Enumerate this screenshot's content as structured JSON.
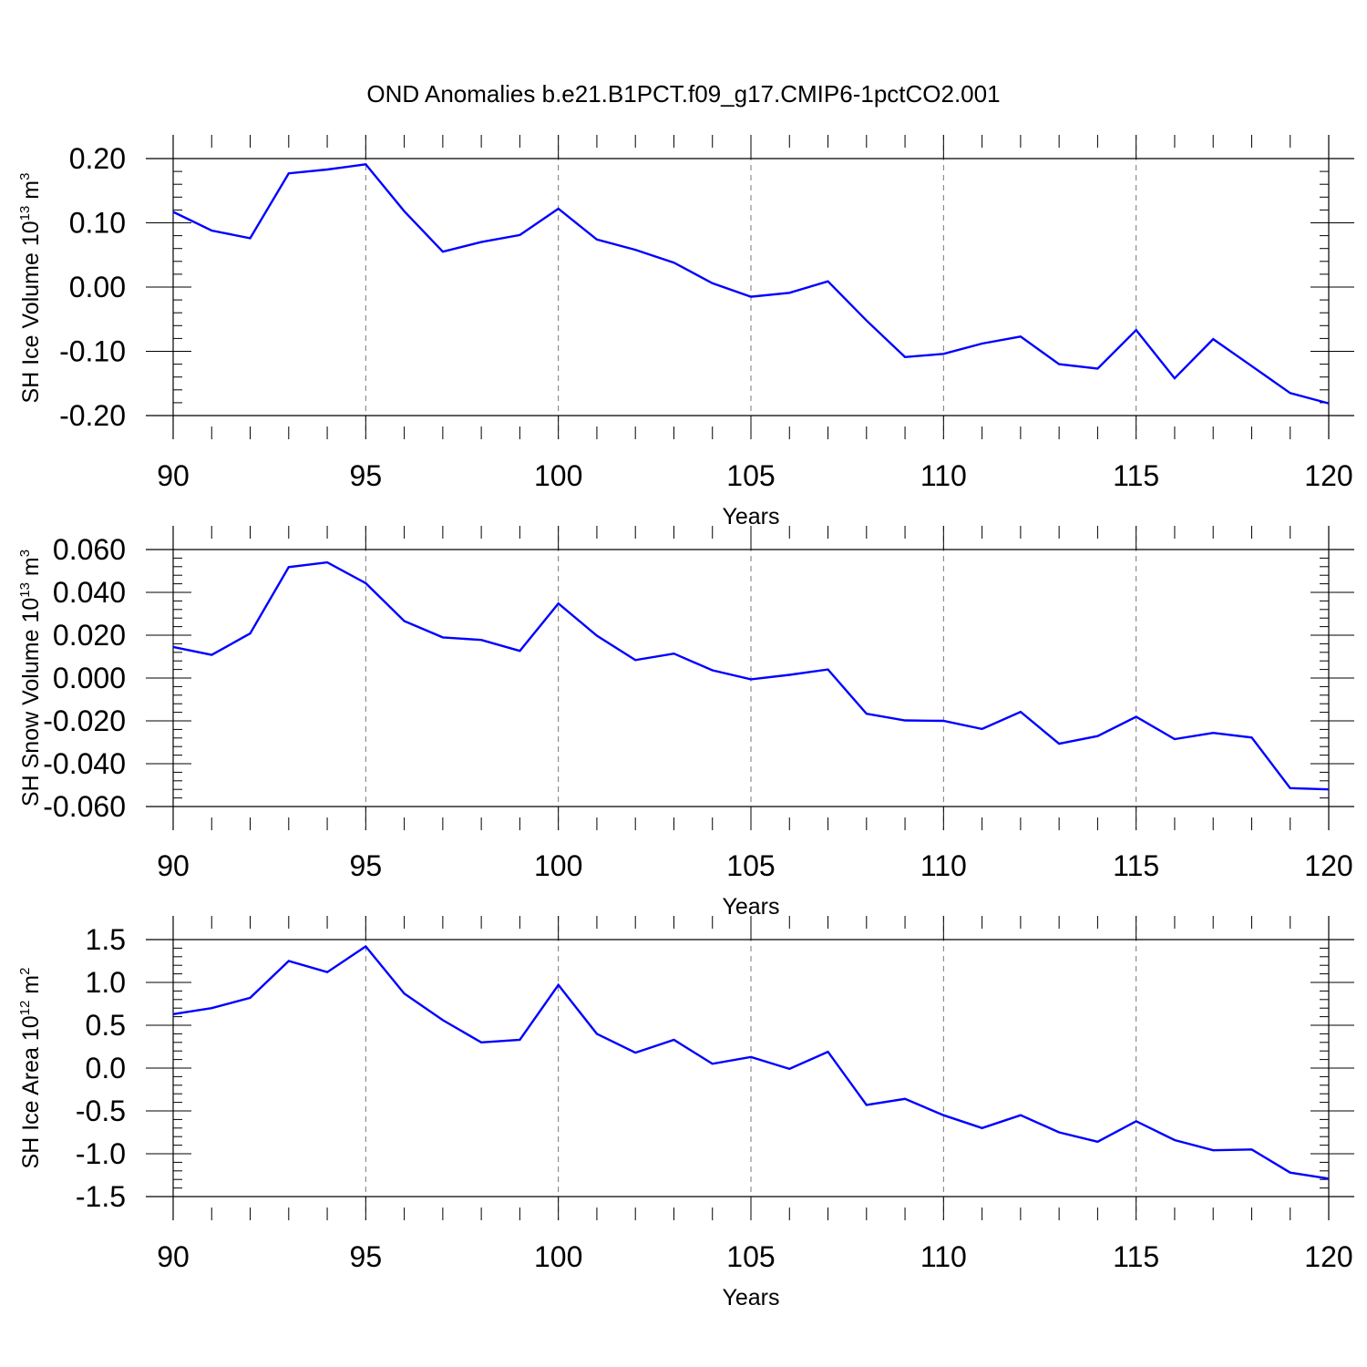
{
  "figure": {
    "title": "OND Anomalies b.e21.B1PCT.f09_g17.CMIP6-1pctCO2.001",
    "line_color": "#0000ff"
  },
  "chart_data": [
    {
      "type": "line",
      "id": "ice-volume",
      "ylabel_text": "SH Ice Volume 10",
      "ylabel_exp": "13",
      "ylabel_unit": " m",
      "ylabel_unit_exp": "3",
      "xlabel": "Years",
      "xlim": [
        90,
        120
      ],
      "ylim": [
        -0.2,
        0.2
      ],
      "x_ticks": [
        90,
        95,
        100,
        105,
        110,
        115,
        120
      ],
      "y_ticks": [
        0.2,
        0.1,
        0.0,
        -0.1,
        -0.2
      ],
      "y_tick_labels": [
        "0.20",
        "0.10",
        "0.00",
        "-0.10",
        "-0.20"
      ],
      "y_minor_step": 0.02,
      "grid": "vertical-dashed",
      "series": [
        {
          "name": "SH Ice Volume",
          "x": [
            90,
            91,
            92,
            93,
            94,
            95,
            96,
            97,
            98,
            99,
            100,
            101,
            102,
            103,
            104,
            105,
            106,
            107,
            108,
            109,
            110,
            111,
            112,
            113,
            114,
            115,
            116,
            117,
            118,
            119,
            120
          ],
          "values": [
            0.117,
            0.088,
            0.076,
            0.177,
            0.183,
            0.191,
            0.118,
            0.055,
            0.07,
            0.081,
            0.122,
            0.074,
            0.058,
            0.038,
            0.006,
            -0.015,
            -0.009,
            0.009,
            -0.052,
            -0.109,
            -0.104,
            -0.088,
            -0.077,
            -0.12,
            -0.127,
            -0.067,
            -0.142,
            -0.081,
            -0.123,
            -0.165,
            -0.181
          ]
        }
      ]
    },
    {
      "type": "line",
      "id": "snow-volume",
      "ylabel_text": "SH Snow Volume 10",
      "ylabel_exp": "13",
      "ylabel_unit": " m",
      "ylabel_unit_exp": "3",
      "xlabel": "Years",
      "xlim": [
        90,
        120
      ],
      "ylim": [
        -0.06,
        0.06
      ],
      "x_ticks": [
        90,
        95,
        100,
        105,
        110,
        115,
        120
      ],
      "y_ticks": [
        0.06,
        0.04,
        0.02,
        0.0,
        -0.02,
        -0.04,
        -0.06
      ],
      "y_tick_labels": [
        "0.060",
        "0.040",
        "0.020",
        "0.000",
        "-0.020",
        "-0.040",
        "-0.060"
      ],
      "y_minor_step": 0.004,
      "grid": "vertical-dashed",
      "series": [
        {
          "name": "SH Snow Volume",
          "x": [
            90,
            91,
            92,
            93,
            94,
            95,
            96,
            97,
            98,
            99,
            100,
            101,
            102,
            103,
            104,
            105,
            106,
            107,
            108,
            109,
            110,
            111,
            112,
            113,
            114,
            115,
            116,
            117,
            118,
            119,
            120
          ],
          "values": [
            0.0145,
            0.0108,
            0.0208,
            0.0518,
            0.054,
            0.0443,
            0.0266,
            0.019,
            0.0178,
            0.0127,
            0.0348,
            0.0198,
            0.0084,
            0.0114,
            0.0036,
            -0.0006,
            0.0015,
            0.004,
            -0.0167,
            -0.0198,
            -0.02,
            -0.0238,
            -0.0158,
            -0.0307,
            -0.0271,
            -0.0181,
            -0.0285,
            -0.0256,
            -0.0278,
            -0.0514,
            -0.052
          ]
        }
      ]
    },
    {
      "type": "line",
      "id": "ice-area",
      "ylabel_text": "SH Ice Area 10",
      "ylabel_exp": "12",
      "ylabel_unit": " m",
      "ylabel_unit_exp": "2",
      "xlabel": "Years",
      "xlim": [
        90,
        120
      ],
      "ylim": [
        -1.5,
        1.5
      ],
      "x_ticks": [
        90,
        95,
        100,
        105,
        110,
        115,
        120
      ],
      "y_ticks": [
        1.5,
        1.0,
        0.5,
        0.0,
        -0.5,
        -1.0,
        -1.5
      ],
      "y_tick_labels": [
        "1.5",
        "1.0",
        "0.5",
        "0.0",
        "-0.5",
        "-1.0",
        "-1.5"
      ],
      "y_minor_step": 0.1,
      "grid": "vertical-dashed",
      "series": [
        {
          "name": "SH Ice Area",
          "x": [
            90,
            91,
            92,
            93,
            94,
            95,
            96,
            97,
            98,
            99,
            100,
            101,
            102,
            103,
            104,
            105,
            106,
            107,
            108,
            109,
            110,
            111,
            112,
            113,
            114,
            115,
            116,
            117,
            118,
            119,
            120
          ],
          "values": [
            0.63,
            0.7,
            0.82,
            1.25,
            1.12,
            1.42,
            0.87,
            0.56,
            0.3,
            0.33,
            0.97,
            0.4,
            0.18,
            0.33,
            0.05,
            0.13,
            -0.01,
            0.19,
            -0.43,
            -0.36,
            -0.55,
            -0.7,
            -0.55,
            -0.75,
            -0.86,
            -0.62,
            -0.84,
            -0.96,
            -0.95,
            -1.22,
            -1.29
          ]
        }
      ]
    }
  ]
}
